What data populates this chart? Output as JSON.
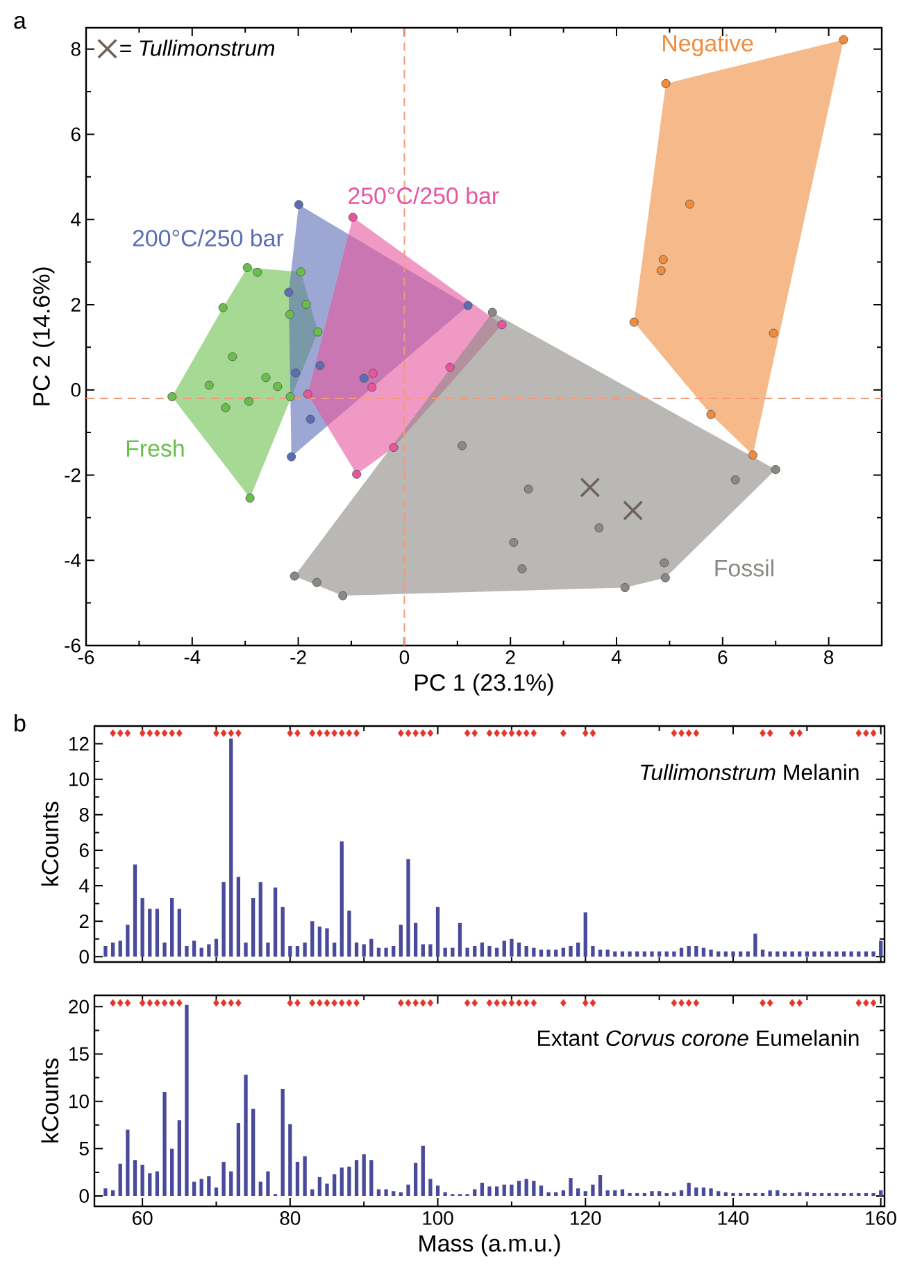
{
  "chart_data": [
    {
      "type": "scatter",
      "title": "a",
      "xlabel": "PC 1 (23.1%)",
      "ylabel": "PC 2 (14.6%)",
      "xlim": [
        -6,
        9
      ],
      "ylim": [
        -6,
        8.5
      ],
      "xticks": [
        -6,
        -4,
        -2,
        0,
        2,
        4,
        6,
        8
      ],
      "yticks": [
        -6,
        -4,
        -2,
        0,
        2,
        4,
        6,
        8
      ],
      "marker": "circle",
      "legend": "top left",
      "ref_lines": [
        {
          "axis": "x",
          "value": 0,
          "color": "#f4977a",
          "line_style": "dashed"
        },
        {
          "axis": "y",
          "value": -0.2,
          "color": "#f4977a",
          "line_style": "dashed"
        }
      ],
      "series": [
        {
          "name": "Fresh",
          "color": "#6abf4b",
          "x": [
            -4.38,
            -3.68,
            -3.42,
            -3.24,
            -3.37,
            -2.96,
            -2.77,
            -2.93,
            -2.91,
            -2.61,
            -2.39,
            -2.16,
            -2.15,
            -1.95,
            -1.85,
            -1.63
          ],
          "values": [
            -0.16,
            0.11,
            1.93,
            0.78,
            -0.42,
            2.87,
            2.76,
            -0.27,
            -2.54,
            0.29,
            0.08,
            1.77,
            -0.16,
            2.77,
            2.01,
            1.36
          ]
        },
        {
          "name": "200°C/250 bar",
          "color": "#5b6db5",
          "x": [
            -1.99,
            -2.18,
            -2.05,
            -1.59,
            -1.77,
            -2.13,
            -0.76,
            1.2
          ],
          "values": [
            4.35,
            2.29,
            0.4,
            0.57,
            -0.69,
            -1.57,
            0.27,
            1.98
          ]
        },
        {
          "name": "250°C/250 bar",
          "color": "#e8559e",
          "x": [
            -0.97,
            -0.59,
            -0.61,
            -1.82,
            -0.9,
            -0.2,
            0.86,
            1.84
          ],
          "values": [
            4.05,
            0.39,
            0.06,
            -0.1,
            -1.98,
            -1.35,
            0.53,
            1.53
          ]
        },
        {
          "name": "Negative",
          "color": "#f08c3c",
          "x": [
            8.28,
            4.93,
            5.38,
            4.88,
            4.84,
            4.33,
            6.96,
            5.78,
            6.57
          ],
          "values": [
            8.22,
            7.19,
            4.36,
            3.06,
            2.8,
            1.59,
            1.33,
            -0.58,
            -1.53
          ]
        },
        {
          "name": "Fossil",
          "color": "#8c8884",
          "x": [
            1.66,
            1.09,
            2.34,
            3.67,
            2.06,
            2.22,
            -2.07,
            -1.65,
            -1.16,
            4.16,
            4.9,
            4.92,
            6.24,
            7.0
          ],
          "values": [
            1.82,
            -1.31,
            -2.33,
            -3.24,
            -3.58,
            -4.2,
            -4.37,
            -4.52,
            -4.83,
            -4.64,
            -4.06,
            -4.41,
            -2.11,
            -1.87
          ]
        },
        {
          "name": "= *Tullimonstrum*",
          "color": "#6e625a",
          "marker": "cross",
          "x": [
            3.5,
            4.31
          ],
          "values": [
            -2.29,
            -2.83
          ]
        }
      ]
    },
    {
      "type": "bar",
      "title": "b",
      "ylabel": "kCounts",
      "annotations": [
        "*Tullimonstrum* Melanin"
      ],
      "xlim": [
        53.5,
        160.5
      ],
      "ylim": [
        -0.3,
        13
      ],
      "xticks": [
        60,
        80,
        100,
        120,
        140,
        160
      ],
      "yticks": [
        0,
        2,
        4,
        6,
        8,
        10,
        12
      ],
      "tick_labels": "y",
      "x": [
        55,
        56,
        57,
        58,
        59,
        60,
        61,
        62,
        63,
        64,
        65,
        66,
        67,
        68,
        69,
        70,
        71,
        72,
        73,
        74,
        75,
        76,
        77,
        78,
        79,
        80,
        81,
        82,
        83,
        84,
        85,
        86,
        87,
        88,
        89,
        90,
        91,
        92,
        93,
        94,
        95,
        96,
        97,
        98,
        99,
        100,
        101,
        102,
        103,
        104,
        105,
        106,
        107,
        108,
        109,
        110,
        111,
        112,
        113,
        114,
        115,
        116,
        117,
        118,
        119,
        120,
        121,
        122,
        123,
        124,
        125,
        126,
        127,
        128,
        129,
        130,
        131,
        132,
        133,
        134,
        135,
        136,
        137,
        138,
        139,
        140,
        141,
        142,
        143,
        144,
        145,
        146,
        147,
        148,
        149,
        150,
        151,
        152,
        153,
        154,
        155,
        156,
        157,
        158,
        159,
        160
      ],
      "series": [
        {
          "color": "#4a4a9c",
          "values": [
            0.6,
            0.8,
            0.9,
            1.8,
            5.2,
            3.3,
            2.7,
            2.7,
            0.8,
            3.3,
            2.7,
            0.6,
            0.9,
            0.5,
            0.7,
            1.0,
            4.2,
            12.3,
            4.5,
            0.8,
            3.3,
            4.2,
            0.8,
            3.9,
            2.8,
            0.6,
            0.6,
            0.8,
            2.0,
            1.7,
            1.6,
            0.8,
            6.5,
            2.6,
            0.8,
            0.7,
            1.0,
            0.5,
            0.5,
            0.6,
            1.8,
            5.5,
            1.9,
            0.7,
            0.7,
            2.8,
            0.5,
            0.5,
            1.9,
            0.5,
            0.6,
            0.8,
            0.6,
            0.5,
            0.9,
            1.0,
            0.8,
            0.6,
            0.5,
            0.4,
            0.4,
            0.4,
            0.5,
            0.6,
            0.8,
            2.5,
            0.6,
            0.4,
            0.4,
            0.3,
            0.3,
            0.3,
            0.3,
            0.3,
            0.3,
            0.3,
            0.3,
            0.3,
            0.5,
            0.6,
            0.6,
            0.5,
            0.4,
            0.3,
            0.3,
            0.3,
            0.3,
            0.3,
            1.3,
            0.4,
            0.3,
            0.3,
            0.3,
            0.3,
            0.3,
            0.3,
            0.3,
            0.3,
            0.3,
            0.3,
            0.3,
            0.3,
            0.3,
            0.3,
            0.3,
            0.9
          ]
        },
        {
          "type": "scatter",
          "marker": "diamond",
          "color": "#e8352a",
          "x": [
            56,
            57,
            58,
            60,
            61,
            62,
            63,
            64,
            65,
            70,
            71,
            72,
            73,
            80,
            81,
            83,
            84,
            85,
            86,
            87,
            88,
            89,
            95,
            96,
            97,
            98,
            99,
            104,
            105,
            107,
            108,
            109,
            110,
            111,
            112,
            113,
            117,
            120,
            121,
            132,
            133,
            134,
            135,
            144,
            145,
            148,
            149,
            157,
            158,
            159
          ],
          "values": [
            12.6,
            12.6,
            12.6,
            12.6,
            12.6,
            12.6,
            12.6,
            12.6,
            12.6,
            12.6,
            12.6,
            12.6,
            12.6,
            12.6,
            12.6,
            12.6,
            12.6,
            12.6,
            12.6,
            12.6,
            12.6,
            12.6,
            12.6,
            12.6,
            12.6,
            12.6,
            12.6,
            12.6,
            12.6,
            12.6,
            12.6,
            12.6,
            12.6,
            12.6,
            12.6,
            12.6,
            12.6,
            12.6,
            12.6,
            12.6,
            12.6,
            12.6,
            12.6,
            12.6,
            12.6,
            12.6,
            12.6,
            12.6,
            12.6,
            12.6
          ]
        }
      ]
    },
    {
      "type": "bar",
      "xlabel": "Mass (a.m.u.)",
      "ylabel": "kCounts",
      "annotations": [
        "Extant *Corvus corone* Eumelanin"
      ],
      "xlim": [
        53.5,
        160.5
      ],
      "ylim": [
        -1.1,
        21.2
      ],
      "xticks": [
        60,
        80,
        100,
        120,
        140,
        160
      ],
      "yticks": [
        0,
        5,
        10,
        15,
        20
      ],
      "x": [
        55,
        56,
        57,
        58,
        59,
        60,
        61,
        62,
        63,
        64,
        65,
        66,
        67,
        68,
        69,
        70,
        71,
        72,
        73,
        74,
        75,
        76,
        77,
        78,
        79,
        80,
        81,
        82,
        83,
        84,
        85,
        86,
        87,
        88,
        89,
        90,
        91,
        92,
        93,
        94,
        95,
        96,
        97,
        98,
        99,
        100,
        101,
        102,
        103,
        104,
        105,
        106,
        107,
        108,
        109,
        110,
        111,
        112,
        113,
        114,
        115,
        116,
        117,
        118,
        119,
        120,
        121,
        122,
        123,
        124,
        125,
        126,
        127,
        128,
        129,
        130,
        131,
        132,
        133,
        134,
        135,
        136,
        137,
        138,
        139,
        140,
        141,
        142,
        143,
        144,
        145,
        146,
        147,
        148,
        149,
        150,
        151,
        152,
        153,
        154,
        155,
        156,
        157,
        158,
        159,
        160
      ],
      "series": [
        {
          "color": "#4a4a9c",
          "values": [
            0.8,
            0.6,
            3.4,
            7.0,
            3.8,
            3.3,
            2.4,
            2.6,
            11.0,
            5.0,
            8.0,
            20.2,
            1.5,
            1.8,
            2.1,
            0.9,
            3.6,
            2.6,
            7.7,
            12.8,
            9.2,
            1.5,
            2.6,
            0.2,
            11.3,
            7.6,
            3.6,
            4.2,
            0.7,
            2.0,
            1.3,
            2.3,
            3.0,
            3.1,
            3.8,
            4.4,
            3.8,
            0.7,
            0.7,
            0.5,
            0.4,
            1.2,
            3.5,
            5.3,
            1.8,
            1.1,
            0.4,
            0.2,
            0.2,
            0.2,
            0.7,
            1.4,
            1.0,
            1.0,
            1.2,
            1.2,
            1.6,
            1.8,
            1.6,
            1.1,
            0.4,
            0.4,
            0.6,
            1.9,
            0.8,
            0.5,
            1.2,
            2.2,
            0.6,
            0.6,
            0.7,
            0.3,
            0.3,
            0.3,
            0.5,
            0.5,
            0.3,
            0.4,
            0.6,
            1.4,
            0.9,
            0.9,
            0.8,
            0.5,
            0.4,
            0.3,
            0.3,
            0.3,
            0.3,
            0.3,
            0.6,
            0.6,
            0.3,
            0.3,
            0.4,
            0.4,
            0.3,
            0.3,
            0.3,
            0.3,
            0.3,
            0.3,
            0.3,
            0.3,
            0.3,
            0.6
          ]
        },
        {
          "type": "scatter",
          "marker": "diamond",
          "color": "#e8352a",
          "x": [
            56,
            57,
            58,
            60,
            61,
            62,
            63,
            64,
            65,
            70,
            71,
            72,
            73,
            80,
            81,
            83,
            84,
            85,
            86,
            87,
            88,
            89,
            95,
            96,
            97,
            98,
            99,
            104,
            105,
            107,
            108,
            109,
            110,
            111,
            112,
            113,
            117,
            120,
            121,
            132,
            133,
            134,
            135,
            144,
            145,
            148,
            149,
            157,
            158,
            159
          ],
          "values": [
            20.4,
            20.4,
            20.4,
            20.4,
            20.4,
            20.4,
            20.4,
            20.4,
            20.4,
            20.4,
            20.4,
            20.4,
            20.4,
            20.4,
            20.4,
            20.4,
            20.4,
            20.4,
            20.4,
            20.4,
            20.4,
            20.4,
            20.4,
            20.4,
            20.4,
            20.4,
            20.4,
            20.4,
            20.4,
            20.4,
            20.4,
            20.4,
            20.4,
            20.4,
            20.4,
            20.4,
            20.4,
            20.4,
            20.4,
            20.4,
            20.4,
            20.4,
            20.4,
            20.4,
            20.4,
            20.4,
            20.4,
            20.4,
            20.4,
            20.4
          ]
        }
      ]
    }
  ]
}
